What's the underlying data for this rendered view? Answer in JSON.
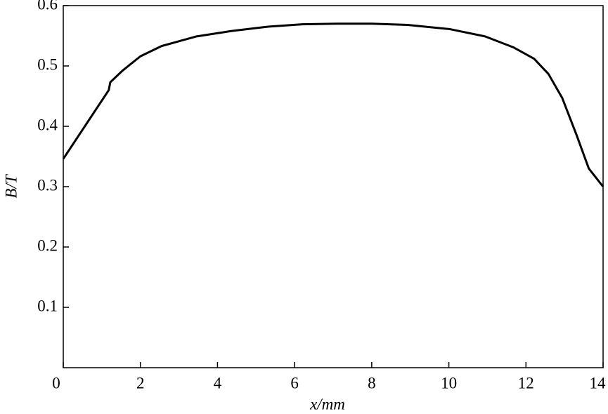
{
  "chart_data": {
    "type": "line",
    "x_label": "x/mm",
    "y_label": "B/T",
    "xlim": [
      0,
      14
    ],
    "xticks": [
      0,
      2,
      4,
      6,
      8,
      10,
      12,
      14
    ],
    "ylim": [
      0,
      0.6
    ],
    "yticks": [
      0.1,
      0.2,
      0.3,
      0.4,
      0.5,
      0.6
    ],
    "series": [
      {
        "color": "#000000",
        "x": [
          0,
          1.18,
          1.22,
          1.55,
          2.0,
          2.55,
          3.46,
          4.37,
          5.29,
          6.2,
          7.1,
          8.0,
          8.93,
          10.03,
          10.94,
          11.67,
          12.21,
          12.58,
          12.94,
          13.31,
          13.63,
          14
        ],
        "values": [
          0.346,
          0.46,
          0.473,
          0.493,
          0.516,
          0.533,
          0.549,
          0.558,
          0.565,
          0.569,
          0.57,
          0.57,
          0.568,
          0.561,
          0.549,
          0.531,
          0.512,
          0.487,
          0.447,
          0.386,
          0.33,
          0.3
        ]
      }
    ]
  }
}
